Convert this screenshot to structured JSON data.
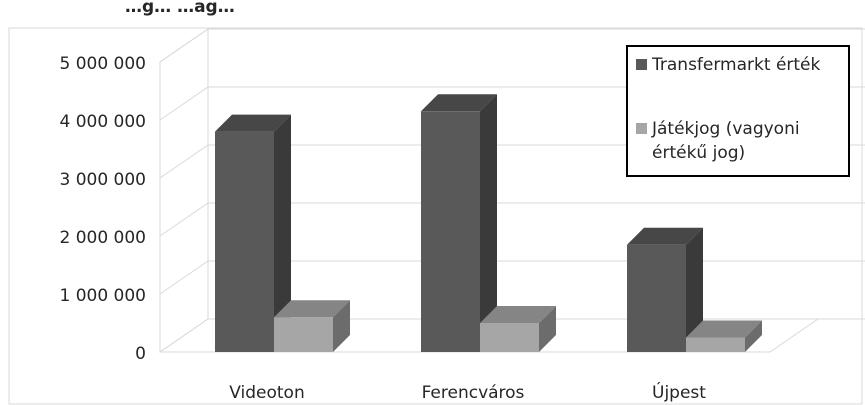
{
  "chart_data": {
    "type": "bar",
    "title": "…g… …ag…",
    "categories": [
      "Videoton",
      "Ferencváros",
      "Újpest"
    ],
    "series": [
      {
        "name": "Transfermarkt érték",
        "values": [
          3800000,
          4150000,
          1850000
        ],
        "color": "#595959"
      },
      {
        "name": "Játékjog (vagyoni értékű jog)",
        "values": [
          600000,
          500000,
          250000
        ],
        "color": "#a6a6a6"
      }
    ],
    "ylim": [
      0,
      5000000
    ],
    "yticks": [
      "0",
      "1 000 000",
      "2 000 000",
      "3 000 000",
      "4 000 000",
      "5 000 000"
    ],
    "grid": true,
    "legend_position": "top-right",
    "style": "3d-column"
  }
}
